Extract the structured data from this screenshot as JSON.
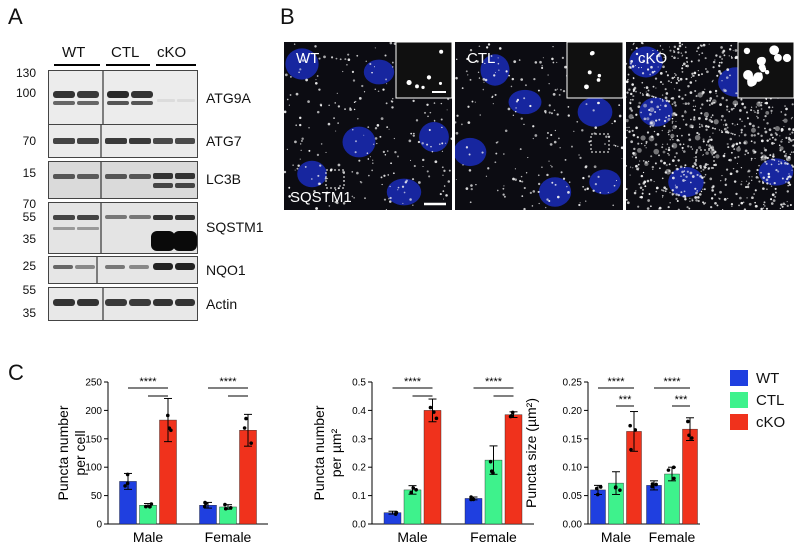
{
  "panels": {
    "a": "A",
    "b": "B",
    "c": "C"
  },
  "panel_a": {
    "groups": [
      "WT",
      "CTL",
      "cKO"
    ],
    "blots": [
      {
        "label": "ATG9A",
        "markers": [
          "130",
          "100"
        ]
      },
      {
        "label": "ATG7",
        "markers": [
          "70"
        ]
      },
      {
        "label": "LC3B",
        "markers": [
          "15"
        ]
      },
      {
        "label": "SQSTM1",
        "markers": [
          "70",
          "55",
          "35"
        ]
      },
      {
        "label": "NQO1",
        "markers": [
          "25"
        ]
      },
      {
        "label": "Actin",
        "markers": [
          "55",
          "35"
        ]
      }
    ]
  },
  "panel_b": {
    "images": [
      {
        "label": "WT"
      },
      {
        "label": "CTL"
      },
      {
        "label": "cKO"
      }
    ],
    "stain_label": "SQSTM1"
  },
  "legend": [
    {
      "label": "WT",
      "color": "#1f3fe0"
    },
    {
      "label": "CTL",
      "color": "#3ef28c"
    },
    {
      "label": "cKO",
      "color": "#f0321c"
    }
  ],
  "chart_data": [
    {
      "type": "bar",
      "ylabel": "Puncta number per cell",
      "ylabel_lines": [
        "Puncta number",
        "per cell"
      ],
      "categories": [
        "Male",
        "Female"
      ],
      "ylim": [
        0,
        250
      ],
      "yticks": [
        "0",
        "50",
        "100",
        "150",
        "200",
        "250"
      ],
      "series": [
        {
          "name": "WT",
          "values": [
            75,
            33
          ],
          "err": [
            14,
            5
          ]
        },
        {
          "name": "CTL",
          "values": [
            33,
            30
          ],
          "err": [
            3,
            4
          ]
        },
        {
          "name": "cKO",
          "values": [
            183,
            165
          ],
          "err": [
            38,
            28
          ]
        }
      ],
      "significance": [
        "****",
        "****"
      ]
    },
    {
      "type": "bar",
      "ylabel": "Puncta number per µm2",
      "ylabel_lines": [
        "Puncta number",
        "per µm²"
      ],
      "categories": [
        "Male",
        "Female"
      ],
      "ylim": [
        0,
        0.5
      ],
      "yticks": [
        "0.0",
        "0.1",
        "0.2",
        "0.3",
        "0.4",
        "0.5"
      ],
      "series": [
        {
          "name": "WT",
          "values": [
            0.04,
            0.09
          ],
          "err": [
            0.005,
            0.005
          ]
        },
        {
          "name": "CTL",
          "values": [
            0.12,
            0.225
          ],
          "err": [
            0.015,
            0.05
          ]
        },
        {
          "name": "cKO",
          "values": [
            0.4,
            0.385
          ],
          "err": [
            0.04,
            0.01
          ]
        }
      ],
      "significance": [
        "****",
        "****"
      ]
    },
    {
      "type": "bar",
      "ylabel": "Puncta size (µm2)",
      "ylabel_lines": [
        "Puncta size (µm²)"
      ],
      "categories": [
        "Male",
        "Female"
      ],
      "ylim": [
        0,
        0.25
      ],
      "yticks": [
        "0.00",
        "0.05",
        "0.10",
        "0.15",
        "0.20",
        "0.25"
      ],
      "series": [
        {
          "name": "WT",
          "values": [
            0.06,
            0.068
          ],
          "err": [
            0.008,
            0.008
          ]
        },
        {
          "name": "CTL",
          "values": [
            0.072,
            0.088
          ],
          "err": [
            0.02,
            0.012
          ]
        },
        {
          "name": "cKO",
          "values": [
            0.163,
            0.167
          ],
          "err": [
            0.035,
            0.02
          ]
        }
      ],
      "significance": [
        "****",
        "***",
        "****",
        "***"
      ]
    }
  ]
}
